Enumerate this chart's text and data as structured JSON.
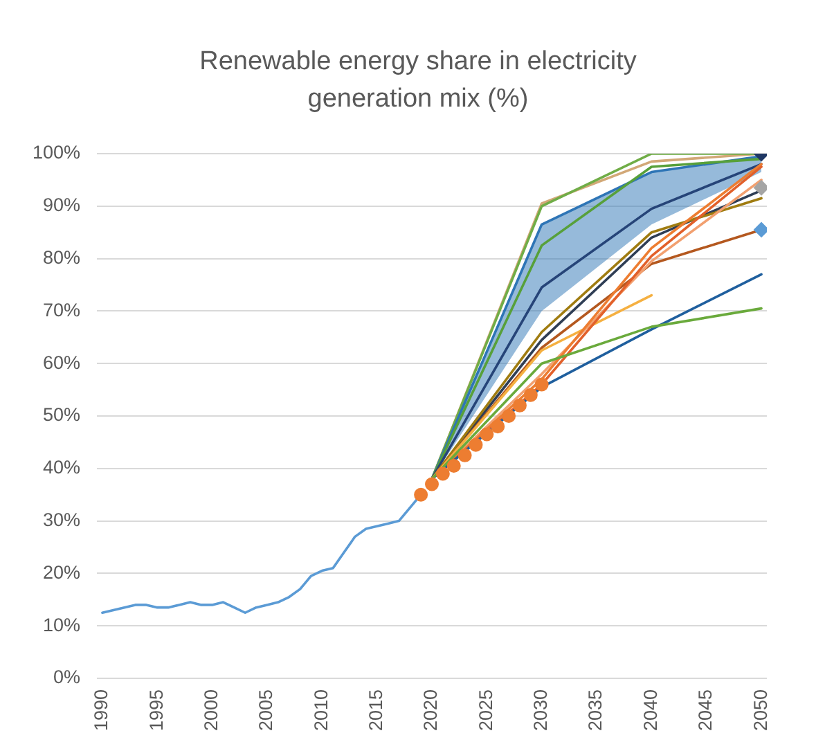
{
  "chart_data": {
    "type": "line",
    "title": "Renewable energy share in electricity generation mix (%)",
    "xlim": [
      1989.5,
      2050.5
    ],
    "xticks": [
      1990,
      1995,
      2000,
      2005,
      2010,
      2015,
      2020,
      2025,
      2030,
      2035,
      2040,
      2045,
      2050
    ],
    "ylim": [
      0,
      100
    ],
    "yticks": [
      {
        "value": 0,
        "label": "0%"
      },
      {
        "value": 10,
        "label": "10%"
      },
      {
        "value": 20,
        "label": "20%"
      },
      {
        "value": 30,
        "label": "30%"
      },
      {
        "value": 40,
        "label": "40%"
      },
      {
        "value": 50,
        "label": "50%"
      },
      {
        "value": 60,
        "label": "60%"
      },
      {
        "value": 70,
        "label": "70%"
      },
      {
        "value": 80,
        "label": "80%"
      },
      {
        "value": 90,
        "label": "90%"
      },
      {
        "value": 100,
        "label": "100%"
      }
    ],
    "grid": "y",
    "legend": false,
    "marker": "none",
    "line_style": "solid",
    "series": [
      {
        "color": "#d2a877",
        "x": [
          2020,
          2030,
          2040,
          2050
        ],
        "values": [
          38,
          90.5,
          98.5,
          100
        ]
      },
      {
        "color": "#70ad47",
        "x": [
          2020,
          2030,
          2040,
          2050
        ],
        "values": [
          38,
          90,
          100,
          100
        ]
      },
      {
        "color": "#2e75b6",
        "x": [
          2020,
          2030,
          2040,
          2050
        ],
        "values": [
          38,
          86.5,
          96.5,
          99.5
        ],
        "lower": [
          38,
          70,
          86.5,
          96.5
        ],
        "upper": [
          38,
          86.5,
          96.5,
          99.5
        ]
      },
      {
        "color": "#57a03a",
        "x": [
          2020,
          2030,
          2040,
          2050
        ],
        "values": [
          38,
          82.5,
          97.5,
          99
        ]
      },
      {
        "color": "#264478",
        "x": [
          2020,
          2030,
          2040,
          2050
        ],
        "values": [
          38,
          74.5,
          89.5,
          98
        ]
      },
      {
        "color": "#2f3e55",
        "x": [
          2020,
          2030,
          2040,
          2050
        ],
        "values": [
          38,
          64.5,
          84,
          93
        ]
      },
      {
        "color": "#a07c10",
        "x": [
          2020,
          2030,
          2040,
          2050
        ],
        "values": [
          38,
          66,
          85,
          91.5
        ]
      },
      {
        "color": "#b4581f",
        "x": [
          2020,
          2030,
          2040,
          2050
        ],
        "values": [
          38,
          63,
          79,
          85.5
        ]
      },
      {
        "color": "#f5b041",
        "x": [
          2020,
          2030,
          2040
        ],
        "values": [
          38,
          62.5,
          73
        ]
      },
      {
        "color": "#f2a070",
        "x": [
          2020,
          2030,
          2040,
          2050
        ],
        "values": [
          38,
          58,
          79.5,
          95
        ]
      },
      {
        "color": "#ed7d31",
        "x": [
          2020,
          2030,
          2040,
          2050
        ],
        "values": [
          38,
          57,
          82,
          98
        ]
      },
      {
        "color": "#e2602a",
        "x": [
          2020,
          2030,
          2040,
          2050
        ],
        "values": [
          38,
          56,
          80.5,
          97.5
        ]
      },
      {
        "color": "#1f5f9e",
        "x": [
          2020,
          2030,
          2040,
          2050
        ],
        "values": [
          38,
          55.5,
          66.5,
          77
        ]
      },
      {
        "color": "#6aaa3c",
        "x": [
          2020,
          2030,
          2040,
          2050
        ],
        "values": [
          38,
          60,
          67,
          70.5
        ]
      },
      {
        "color": "#5b9bd5",
        "x": [
          1990,
          1991,
          1992,
          1993,
          1994,
          1995,
          1996,
          1997,
          1998,
          1999,
          2000,
          2001,
          2002,
          2003,
          2004,
          2005,
          2006,
          2007,
          2008,
          2009,
          2010,
          2011,
          2012,
          2013,
          2014,
          2015,
          2016,
          2017,
          2018,
          2019
        ],
        "values": [
          12.5,
          13,
          13.5,
          14,
          14,
          13.5,
          13.5,
          14,
          14.5,
          14,
          14,
          14.5,
          13.5,
          12.5,
          13.5,
          14,
          14.5,
          15.5,
          17,
          19.5,
          20.5,
          21,
          24,
          27,
          28.5,
          29,
          29.5,
          30,
          32.5,
          35
        ]
      },
      {
        "type": "scatter",
        "marker": "circle",
        "color": "#ed7d31",
        "x": [
          2019,
          2020,
          2021,
          2022,
          2023,
          2024,
          2025,
          2026,
          2027,
          2028,
          2029,
          2030
        ],
        "values": [
          35,
          37,
          39,
          40.5,
          42.5,
          44.5,
          46.5,
          48,
          50,
          52,
          54,
          56
        ]
      },
      {
        "type": "scatter",
        "marker": "diamond",
        "color": "#203864",
        "x": [
          2050
        ],
        "values": [
          100
        ]
      },
      {
        "type": "scatter",
        "marker": "diamond",
        "color": "#a5a5a5",
        "x": [
          2050
        ],
        "values": [
          93.5
        ]
      },
      {
        "type": "scatter",
        "marker": "diamond",
        "color": "#5b9bd5",
        "x": [
          2050
        ],
        "values": [
          85.5
        ]
      }
    ]
  }
}
